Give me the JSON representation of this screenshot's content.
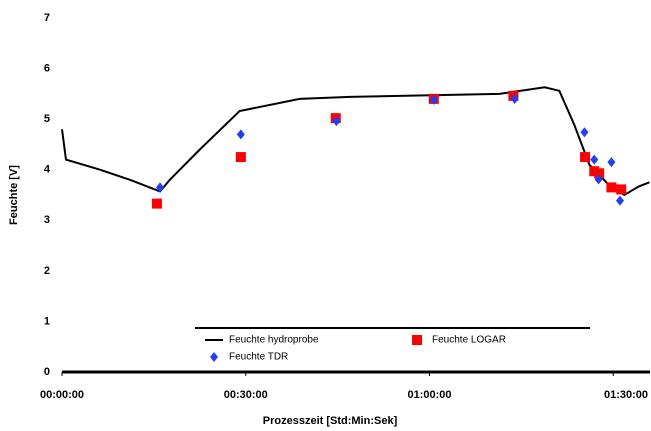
{
  "chart_data": {
    "type": "line",
    "x_label": "Prozesszeit [Std:Min:Sek]",
    "y_label": "Feuchte [V]",
    "xlim": [
      0,
      96
    ],
    "ylim": [
      0,
      7
    ],
    "xticks": [
      {
        "value": 0,
        "label": "00:00:00"
      },
      {
        "value": 30,
        "label": "00:30:00"
      },
      {
        "value": 60,
        "label": "01:00:00"
      },
      {
        "value": 90,
        "label": "01:30:00"
      }
    ],
    "yticks": [
      0,
      1,
      2,
      3,
      4,
      5,
      6,
      7
    ],
    "series": [
      {
        "name": "Feuchte hydroprobe",
        "color": "#000000",
        "marker": "line",
        "x": [
          0,
          0.65,
          6.2,
          11.1,
          16.0,
          17.6,
          22.5,
          29.0,
          38.8,
          47.0,
          55.1,
          63.3,
          71.4,
          78.8,
          81.2,
          83.6,
          86.1,
          89.3,
          91.8,
          94.2,
          95.9
        ],
        "values": [
          4.8,
          4.2,
          4.0,
          3.8,
          3.57,
          3.8,
          4.4,
          5.16,
          5.4,
          5.44,
          5.46,
          5.48,
          5.5,
          5.63,
          5.56,
          4.9,
          4.1,
          3.7,
          3.5,
          3.67,
          3.75
        ]
      },
      {
        "name": "Feuchte LOGAR",
        "color": "#ff0000",
        "marker": "square",
        "x": [
          15.5,
          29.2,
          44.7,
          60.7,
          73.7,
          85.4,
          86.9,
          87.7,
          89.7,
          91.3
        ],
        "values": [
          3.33,
          4.25,
          5.02,
          5.4,
          5.46,
          4.25,
          3.97,
          3.93,
          3.65,
          3.61
        ]
      },
      {
        "name": "Feuchte TDR",
        "color": "#1f3fff",
        "marker": "diamond",
        "x": [
          16.0,
          29.2,
          44.8,
          60.7,
          73.9,
          85.3,
          86.9,
          87.6,
          89.7,
          91.1
        ],
        "values": [
          3.65,
          4.7,
          4.96,
          5.38,
          5.4,
          4.74,
          4.2,
          3.81,
          4.15,
          3.39
        ]
      }
    ]
  }
}
